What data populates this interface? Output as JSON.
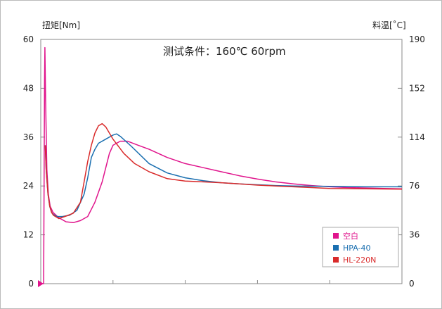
{
  "chart_data": {
    "type": "line",
    "condition_text": "测试条件：160℃ 60rpm",
    "left_axis": {
      "label": "扭矩[Nm]",
      "range": [
        0,
        60
      ],
      "ticks": [
        "0",
        "12",
        "24",
        "36",
        "48",
        "60"
      ]
    },
    "right_axis": {
      "label": "料温[˚C]",
      "ticks": [
        "0",
        "36",
        "76",
        "114",
        "152",
        "190"
      ]
    },
    "grid": false,
    "legend_position": "bottom-right",
    "series": [
      {
        "name": "空白",
        "color": "#e0148c",
        "points": [
          [
            0,
            0
          ],
          [
            0.8,
            0
          ],
          [
            1.05,
            50
          ],
          [
            1.15,
            58
          ],
          [
            1.35,
            45
          ],
          [
            1.7,
            28
          ],
          [
            2.1,
            22
          ],
          [
            2.6,
            19
          ],
          [
            3.4,
            17.5
          ],
          [
            5,
            16.2
          ],
          [
            7,
            15.2
          ],
          [
            9,
            15
          ],
          [
            11,
            15.5
          ],
          [
            13,
            16.5
          ],
          [
            15,
            20
          ],
          [
            17,
            25
          ],
          [
            19,
            32
          ],
          [
            20,
            34
          ],
          [
            22,
            35
          ],
          [
            24,
            35
          ],
          [
            27,
            34
          ],
          [
            30,
            33
          ],
          [
            35,
            31
          ],
          [
            40,
            29.5
          ],
          [
            45,
            28.5
          ],
          [
            50,
            27.5
          ],
          [
            55,
            26.5
          ],
          [
            60,
            25.7
          ],
          [
            65,
            25
          ],
          [
            70,
            24.5
          ],
          [
            75,
            24.1
          ],
          [
            80,
            23.8
          ],
          [
            85,
            23.6
          ],
          [
            90,
            23.5
          ],
          [
            95,
            23.4
          ],
          [
            100,
            23.3
          ]
        ]
      },
      {
        "name": "HPA-40",
        "color": "#1a6fb0",
        "points": [
          [
            1.25,
            34
          ],
          [
            1.5,
            28
          ],
          [
            2,
            22
          ],
          [
            2.5,
            19
          ],
          [
            3,
            17.5
          ],
          [
            3.5,
            17
          ],
          [
            4.5,
            16.5
          ],
          [
            6,
            16.5
          ],
          [
            8,
            16.8
          ],
          [
            10,
            18
          ],
          [
            12,
            22
          ],
          [
            13,
            26
          ],
          [
            14,
            31
          ],
          [
            15,
            33
          ],
          [
            16,
            34.5
          ],
          [
            18,
            35.5
          ],
          [
            20,
            36.5
          ],
          [
            21,
            36.8
          ],
          [
            22,
            36.2
          ],
          [
            25,
            33.8
          ],
          [
            30,
            29.5
          ],
          [
            35,
            27.2
          ],
          [
            40,
            26
          ],
          [
            45,
            25.3
          ],
          [
            50,
            24.8
          ],
          [
            55,
            24.5
          ],
          [
            60,
            24.3
          ],
          [
            65,
            24.1
          ],
          [
            70,
            24
          ],
          [
            80,
            23.9
          ],
          [
            90,
            23.8
          ],
          [
            100,
            23.8
          ]
        ]
      },
      {
        "name": "HL-220N",
        "color": "#d92b2b",
        "points": [
          [
            1.25,
            34
          ],
          [
            1.5,
            28
          ],
          [
            2,
            22
          ],
          [
            2.5,
            19
          ],
          [
            3,
            17.5
          ],
          [
            3.5,
            16.8
          ],
          [
            5,
            16
          ],
          [
            7,
            16.6
          ],
          [
            9,
            17.3
          ],
          [
            11,
            20
          ],
          [
            12,
            25
          ],
          [
            13,
            30
          ],
          [
            14,
            34
          ],
          [
            15,
            37
          ],
          [
            16,
            38.8
          ],
          [
            17,
            39.3
          ],
          [
            18,
            38.5
          ],
          [
            20,
            35.5
          ],
          [
            23,
            32
          ],
          [
            26,
            29.5
          ],
          [
            30,
            27.5
          ],
          [
            35,
            25.8
          ],
          [
            40,
            25.2
          ],
          [
            45,
            25
          ],
          [
            50,
            24.8
          ],
          [
            55,
            24.5
          ],
          [
            60,
            24.2
          ],
          [
            65,
            24
          ],
          [
            70,
            23.8
          ],
          [
            75,
            23.6
          ],
          [
            80,
            23.4
          ],
          [
            90,
            23.3
          ],
          [
            100,
            23.2
          ]
        ]
      }
    ],
    "x_range": [
      0,
      100
    ]
  }
}
